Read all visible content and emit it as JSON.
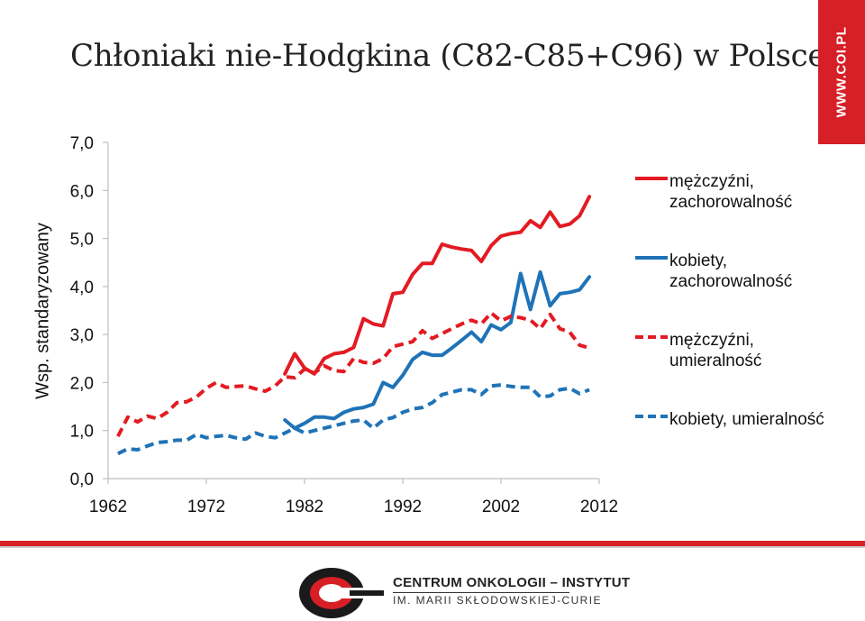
{
  "header": {
    "title": "Chłoniaki nie-Hodgkina (C82-C85+C96) w Polsce",
    "side_badge": "WWW.COI.PL"
  },
  "footer": {
    "org_line1": "CENTRUM ONKOLOGII – INSTYTUT",
    "org_line2": "IM. MARII SKŁODOWSKIEJ-CURIE"
  },
  "colors": {
    "red": "#e31b23",
    "blue": "#1f73b7",
    "brand": "#d61f26"
  },
  "chart_data": {
    "type": "line",
    "title": "",
    "ylabel": "Wsp. standaryzowany",
    "xlabel": "",
    "xlim": [
      1962,
      2012
    ],
    "ylim": [
      0,
      7
    ],
    "x_ticks": [
      "1962",
      "1972",
      "1982",
      "1992",
      "2002",
      "2012"
    ],
    "y_ticks": [
      "0,0",
      "1,0",
      "2,0",
      "3,0",
      "4,0",
      "5,0",
      "6,0",
      "7,0"
    ],
    "grid": false,
    "legend_position": "right",
    "series": [
      {
        "name": "mężczyźni, zachorowalność",
        "color": "#e31b23",
        "dash": "solid",
        "x": [
          1980,
          1981,
          1982,
          1983,
          1984,
          1985,
          1986,
          1987,
          1988,
          1989,
          1990,
          1991,
          1992,
          1993,
          1994,
          1995,
          1996,
          1997,
          1998,
          1999,
          2000,
          2001,
          2002,
          2003,
          2004,
          2005,
          2006,
          2007,
          2008,
          2009,
          2010,
          2011
        ],
        "y": [
          2.18,
          2.6,
          2.3,
          2.18,
          2.5,
          2.6,
          2.63,
          2.73,
          3.33,
          3.22,
          3.18,
          3.85,
          3.88,
          4.25,
          4.48,
          4.48,
          4.88,
          4.82,
          4.78,
          4.75,
          4.52,
          4.85,
          5.05,
          5.1,
          5.13,
          5.37,
          5.23,
          5.55,
          5.25,
          5.3,
          5.47,
          5.87
        ]
      },
      {
        "name": "kobiety, zachorowalność",
        "color": "#1f73b7",
        "dash": "solid",
        "x": [
          1980,
          1981,
          1982,
          1983,
          1984,
          1985,
          1986,
          1987,
          1988,
          1989,
          1990,
          1991,
          1992,
          1993,
          1994,
          1995,
          1996,
          1997,
          1998,
          1999,
          2000,
          2001,
          2002,
          2003,
          2004,
          2005,
          2006,
          2007,
          2008,
          2009,
          2010,
          2011
        ],
        "y": [
          1.22,
          1.05,
          1.15,
          1.28,
          1.28,
          1.25,
          1.38,
          1.45,
          1.48,
          1.55,
          2.0,
          1.9,
          2.15,
          2.48,
          2.63,
          2.57,
          2.57,
          2.72,
          2.88,
          3.05,
          2.85,
          3.2,
          3.1,
          3.25,
          4.27,
          3.52,
          4.3,
          3.6,
          3.85,
          3.88,
          3.93,
          4.2
        ]
      },
      {
        "name": "mężczyźni, umieralność",
        "color": "#e31b23",
        "dash": "dashed",
        "x": [
          1963,
          1964,
          1965,
          1966,
          1967,
          1968,
          1969,
          1970,
          1971,
          1972,
          1973,
          1974,
          1975,
          1976,
          1977,
          1978,
          1979,
          1980,
          1981,
          1982,
          1983,
          1984,
          1985,
          1986,
          1987,
          1988,
          1989,
          1990,
          1991,
          1992,
          1993,
          1994,
          1995,
          1996,
          1997,
          1998,
          1999,
          2000,
          2001,
          2002,
          2003,
          2004,
          2005,
          2006,
          2007,
          2008,
          2009,
          2010,
          2011
        ],
        "y": [
          0.88,
          1.28,
          1.18,
          1.3,
          1.25,
          1.38,
          1.58,
          1.6,
          1.7,
          1.88,
          2.0,
          1.9,
          1.92,
          1.93,
          1.87,
          1.82,
          1.93,
          2.12,
          2.1,
          2.28,
          2.2,
          2.35,
          2.25,
          2.23,
          2.5,
          2.42,
          2.4,
          2.5,
          2.75,
          2.8,
          2.85,
          3.08,
          2.92,
          3.02,
          3.12,
          3.22,
          3.3,
          3.22,
          3.45,
          3.28,
          3.38,
          3.35,
          3.3,
          3.12,
          3.42,
          3.12,
          3.05,
          2.78,
          2.72
        ]
      },
      {
        "name": "kobiety, umieralność",
        "color": "#1f73b7",
        "dash": "dashed",
        "x": [
          1963,
          1964,
          1965,
          1966,
          1967,
          1968,
          1969,
          1970,
          1971,
          1972,
          1973,
          1974,
          1975,
          1976,
          1977,
          1978,
          1979,
          1980,
          1981,
          1982,
          1983,
          1984,
          1985,
          1986,
          1987,
          1988,
          1989,
          1990,
          1991,
          1992,
          1993,
          1994,
          1995,
          1996,
          1997,
          1998,
          1999,
          2000,
          2001,
          2002,
          2003,
          2004,
          2005,
          2006,
          2007,
          2008,
          2009,
          2010,
          2011
        ],
        "y": [
          0.52,
          0.62,
          0.6,
          0.68,
          0.75,
          0.77,
          0.8,
          0.8,
          0.92,
          0.85,
          0.88,
          0.9,
          0.85,
          0.82,
          0.95,
          0.88,
          0.85,
          0.95,
          1.05,
          0.95,
          1.0,
          1.05,
          1.1,
          1.15,
          1.2,
          1.22,
          1.05,
          1.22,
          1.27,
          1.38,
          1.45,
          1.48,
          1.58,
          1.75,
          1.8,
          1.85,
          1.85,
          1.75,
          1.93,
          1.95,
          1.92,
          1.9,
          1.9,
          1.7,
          1.72,
          1.85,
          1.88,
          1.77,
          1.85
        ]
      }
    ]
  }
}
